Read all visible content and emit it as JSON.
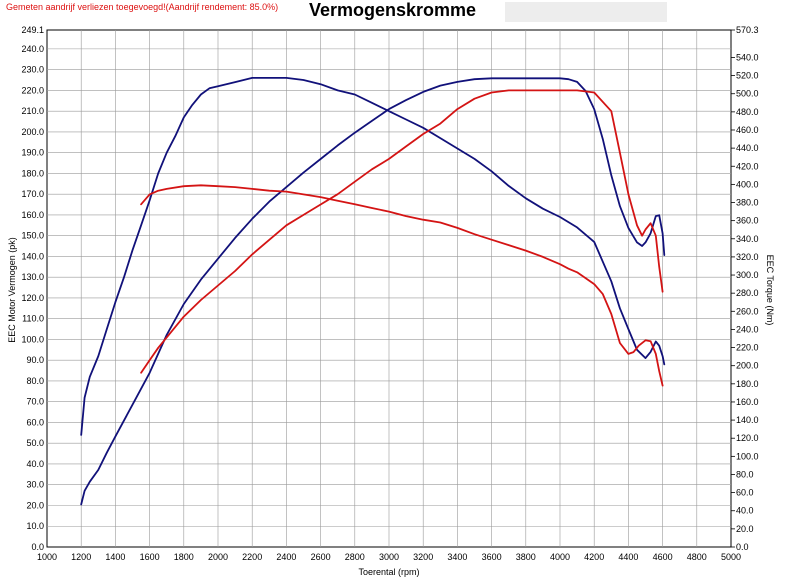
{
  "notice": "Gemeten aandrijf verliezen toegevoegd!(Aandrijf rendement: 85.0%)",
  "title": "Vermogenskromme",
  "colors": {
    "power": "#11117a",
    "torque": "#d41414",
    "background": "#ffffff",
    "grid": "#9a9a9a"
  },
  "chart_data": {
    "type": "line",
    "title": "Vermogenskromme",
    "xlabel": "Toerental (rpm)",
    "ylabel": "EEC Motor Vermogen (pk)",
    "y2label": "EEC Torque (Nm)",
    "xlim": [
      1000,
      5000
    ],
    "ylim": [
      0,
      249.1
    ],
    "y2lim": [
      0,
      570.3
    ],
    "grid": true,
    "x_ticks": [
      "1000",
      "1200",
      "1400",
      "1600",
      "1800",
      "2000",
      "2200",
      "2400",
      "2600",
      "2800",
      "3000",
      "3200",
      "3400",
      "3600",
      "3800",
      "4000",
      "4200",
      "4400",
      "4600",
      "4800",
      "5000"
    ],
    "y_ticks": [
      "0.0",
      "10.0",
      "20.0",
      "30.0",
      "40.0",
      "50.0",
      "60.0",
      "70.0",
      "80.0",
      "90.0",
      "100.0",
      "110.0",
      "120.0",
      "130.0",
      "140.0",
      "150.0",
      "160.0",
      "170.0",
      "180.0",
      "190.0",
      "200.0",
      "210.0",
      "220.0",
      "230.0",
      "240.0",
      "249.1"
    ],
    "y2_ticks": [
      "0.0",
      "20.0",
      "40.0",
      "60.0",
      "80.0",
      "100.0",
      "120.0",
      "140.0",
      "160.0",
      "180.0",
      "200.0",
      "220.0",
      "240.0",
      "260.0",
      "280.0",
      "300.0",
      "320.0",
      "340.0",
      "360.0",
      "380.0",
      "400.0",
      "420.0",
      "440.0",
      "460.0",
      "480.0",
      "500.0",
      "520.0",
      "540.0",
      "570.3"
    ],
    "series": [
      {
        "axis": "left",
        "color": "#11117a",
        "x": [
          1200,
          1220,
          1250,
          1300,
          1350,
          1400,
          1450,
          1500,
          1550,
          1600,
          1650,
          1700,
          1750,
          1800,
          1850,
          1900,
          1950,
          2000,
          2100,
          2200,
          2300,
          2400,
          2500,
          2600,
          2700,
          2800,
          2900,
          3000,
          3100,
          3200,
          3300,
          3400,
          3500,
          3600,
          3700,
          3800,
          3900,
          4000,
          4100,
          4200,
          4300,
          4350,
          4400,
          4450,
          4500,
          4530,
          4560,
          4580,
          4600,
          4610
        ],
        "y": [
          54,
          72,
          82,
          92,
          105,
          118,
          130,
          143,
          155,
          167,
          180,
          190,
          198,
          207,
          213,
          218,
          221,
          222,
          224,
          226,
          226,
          226,
          225,
          223,
          220,
          218,
          214,
          210,
          206,
          202,
          197,
          192,
          187,
          181,
          174,
          168,
          163,
          159,
          154,
          147,
          128,
          115,
          105,
          95,
          91,
          94,
          99,
          97,
          92,
          88
        ]
      },
      {
        "axis": "right",
        "color": "#11117a",
        "x": [
          1200,
          1220,
          1250,
          1300,
          1350,
          1400,
          1500,
          1600,
          1700,
          1800,
          1900,
          2000,
          2100,
          2200,
          2300,
          2400,
          2500,
          2600,
          2700,
          2800,
          2900,
          3000,
          3100,
          3200,
          3300,
          3400,
          3500,
          3600,
          3700,
          3800,
          3900,
          4000,
          4050,
          4100,
          4150,
          4200,
          4250,
          4300,
          4350,
          4400,
          4450,
          4480,
          4500,
          4530,
          4560,
          4580,
          4600,
          4610
        ],
        "y": [
          47,
          62,
          72,
          85,
          104,
          122,
          157,
          192,
          234,
          268,
          295,
          318,
          341,
          362,
          381,
          397,
          413,
          428,
          443,
          457,
          470,
          483,
          493,
          502,
          509,
          513,
          516,
          517,
          517,
          517,
          517,
          517,
          516,
          513,
          503,
          483,
          450,
          410,
          376,
          352,
          336,
          332,
          336,
          346,
          365,
          366,
          346,
          322
        ]
      },
      {
        "axis": "left",
        "color": "#d41414",
        "x": [
          1550,
          1600,
          1650,
          1700,
          1800,
          1900,
          2000,
          2100,
          2200,
          2300,
          2400,
          2500,
          2600,
          2700,
          2800,
          2900,
          3000,
          3100,
          3200,
          3300,
          3400,
          3500,
          3600,
          3700,
          3800,
          3900,
          4000,
          4100,
          4200,
          4300,
          4350,
          4400,
          4450,
          4480,
          4500,
          4530,
          4560,
          4580,
          4600
        ],
        "y": [
          84,
          90,
          96,
          101,
          111,
          119,
          126,
          133,
          141,
          148,
          155,
          160,
          165,
          170,
          176,
          182,
          187,
          193,
          199,
          204,
          211,
          216,
          219,
          220,
          220,
          220,
          220,
          220,
          219,
          210,
          190,
          170,
          155,
          150,
          153,
          156,
          150,
          135,
          123
        ]
      },
      {
        "axis": "right",
        "color": "#d41414",
        "x": [
          1550,
          1600,
          1650,
          1700,
          1800,
          1900,
          2000,
          2100,
          2200,
          2300,
          2400,
          2500,
          2600,
          2700,
          2800,
          2900,
          3000,
          3100,
          3200,
          3300,
          3400,
          3500,
          3600,
          3700,
          3800,
          3900,
          4000,
          4050,
          4100,
          4200,
          4250,
          4300,
          4350,
          4400,
          4430,
          4460,
          4500,
          4530,
          4560,
          4580,
          4600
        ],
        "y": [
          378,
          389,
          393,
          395,
          398,
          399,
          398,
          397,
          395,
          393,
          392,
          389,
          386,
          382,
          378,
          374,
          370,
          365,
          361,
          358,
          352,
          345,
          339,
          333,
          327,
          320,
          312,
          307,
          303,
          290,
          279,
          257,
          225,
          213,
          215,
          222,
          228,
          227,
          213,
          194,
          178
        ]
      }
    ]
  }
}
